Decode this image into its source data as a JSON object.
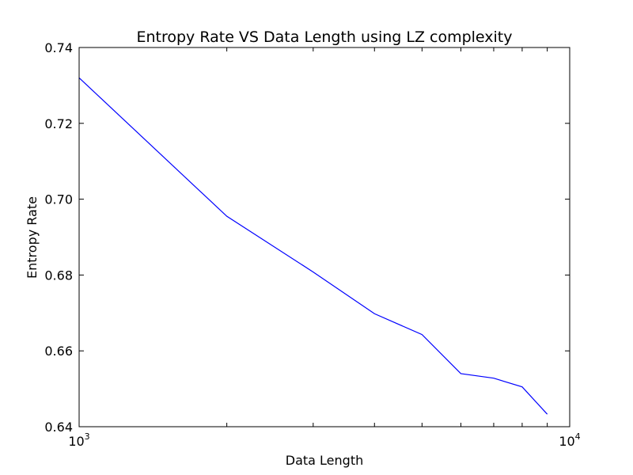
{
  "chart_data": {
    "type": "line",
    "title": "Entropy Rate VS Data Length using LZ complexity",
    "xlabel": "Data Length",
    "ylabel": "Entropy Rate",
    "xscale": "log",
    "xlim": [
      1000,
      10000
    ],
    "ylim": [
      0.64,
      0.74
    ],
    "grid": false,
    "x_ticks": [
      {
        "value": 1000,
        "base": "10",
        "exp": "3"
      },
      {
        "value": 10000,
        "base": "10",
        "exp": "4"
      }
    ],
    "y_ticks": [
      {
        "value": 0.64,
        "label": "0.64"
      },
      {
        "value": 0.66,
        "label": "0.66"
      },
      {
        "value": 0.68,
        "label": "0.68"
      },
      {
        "value": 0.7,
        "label": "0.70"
      },
      {
        "value": 0.72,
        "label": "0.72"
      },
      {
        "value": 0.74,
        "label": "0.74"
      }
    ],
    "series": [
      {
        "color": "#0000ff",
        "x": [
          1000,
          2000,
          3000,
          4000,
          5000,
          6000,
          7000,
          8000,
          9000
        ],
        "y": [
          0.732,
          0.6955,
          0.6808,
          0.6698,
          0.6643,
          0.654,
          0.6528,
          0.6505,
          0.6433
        ]
      }
    ]
  }
}
